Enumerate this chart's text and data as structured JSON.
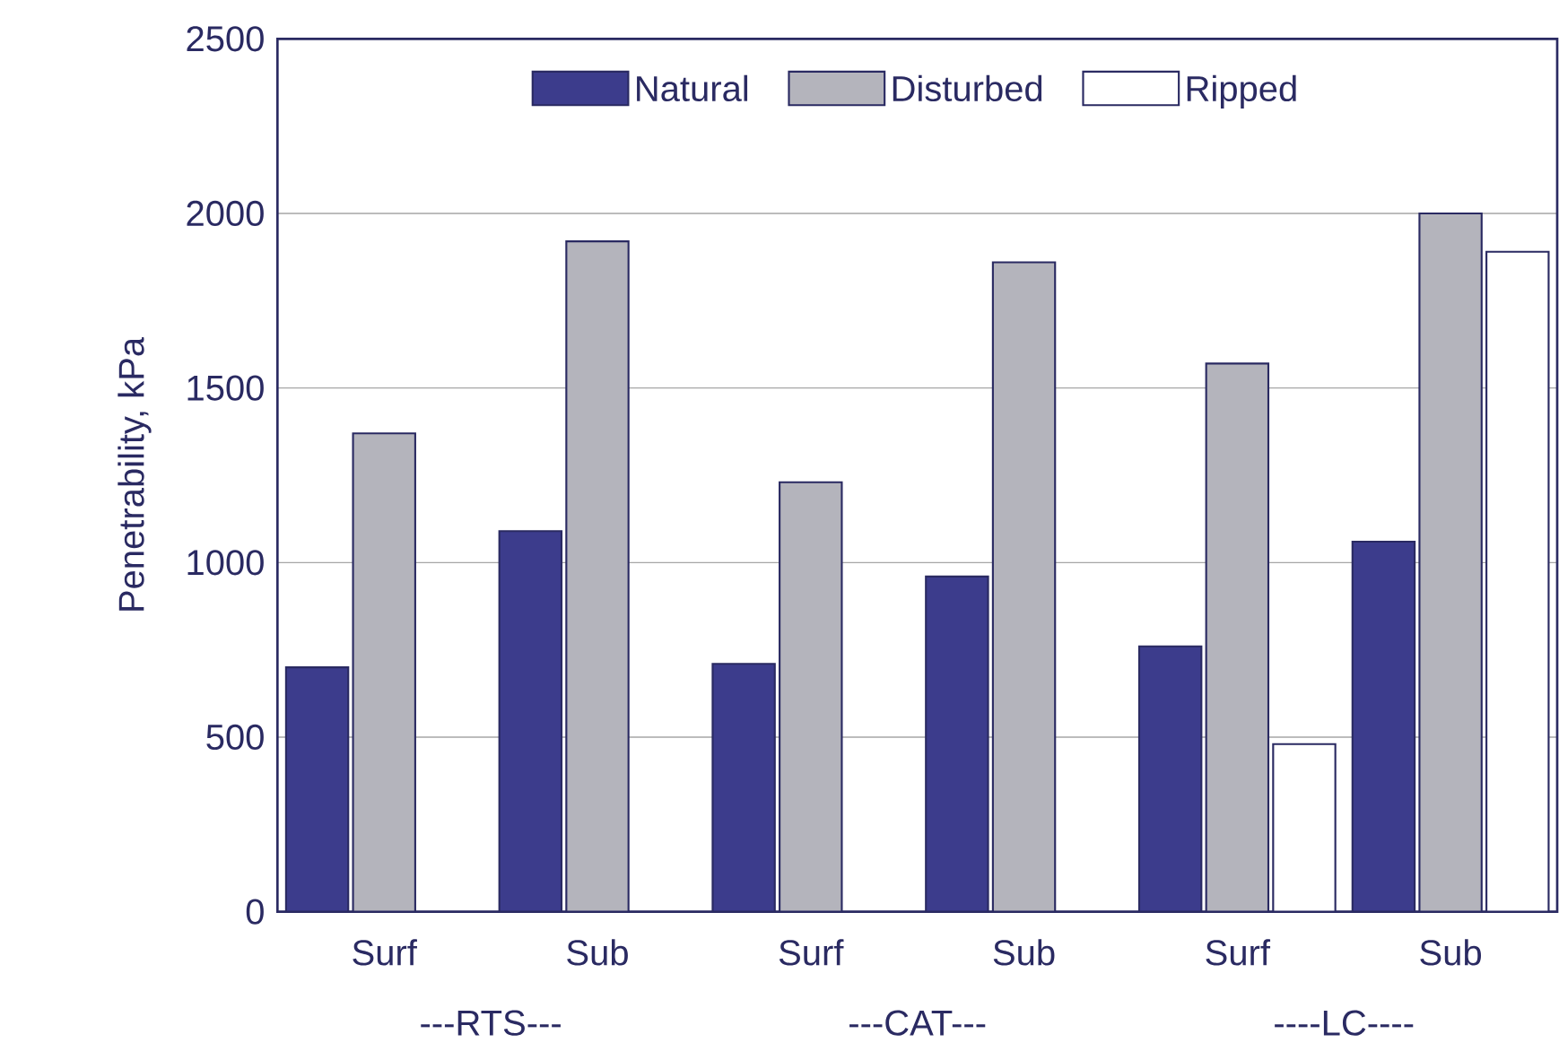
{
  "chart_data": {
    "type": "bar",
    "ylabel": "Penetrability, kPa",
    "categories": [
      "Surf",
      "Sub",
      "Surf",
      "Sub",
      "Surf",
      "Sub"
    ],
    "series": [
      {
        "name": "Natural",
        "color": "#3c3c8c",
        "values": [
          700,
          1090,
          710,
          960,
          760,
          1060
        ]
      },
      {
        "name": "Disturbed",
        "color": "#b4b4bc",
        "values": [
          1370,
          1920,
          1230,
          1860,
          1570,
          2000
        ]
      },
      {
        "name": "Ripped",
        "color": "#ffffff",
        "values": [
          null,
          null,
          null,
          null,
          480,
          1890
        ]
      }
    ],
    "annotations": [
      "---RTS---",
      "---CAT---",
      "----LC----"
    ],
    "ylim": [
      0,
      2500
    ],
    "yticks": [
      0,
      500,
      1000,
      1500,
      2000,
      2500
    ],
    "grid": "y",
    "legend": "top"
  }
}
